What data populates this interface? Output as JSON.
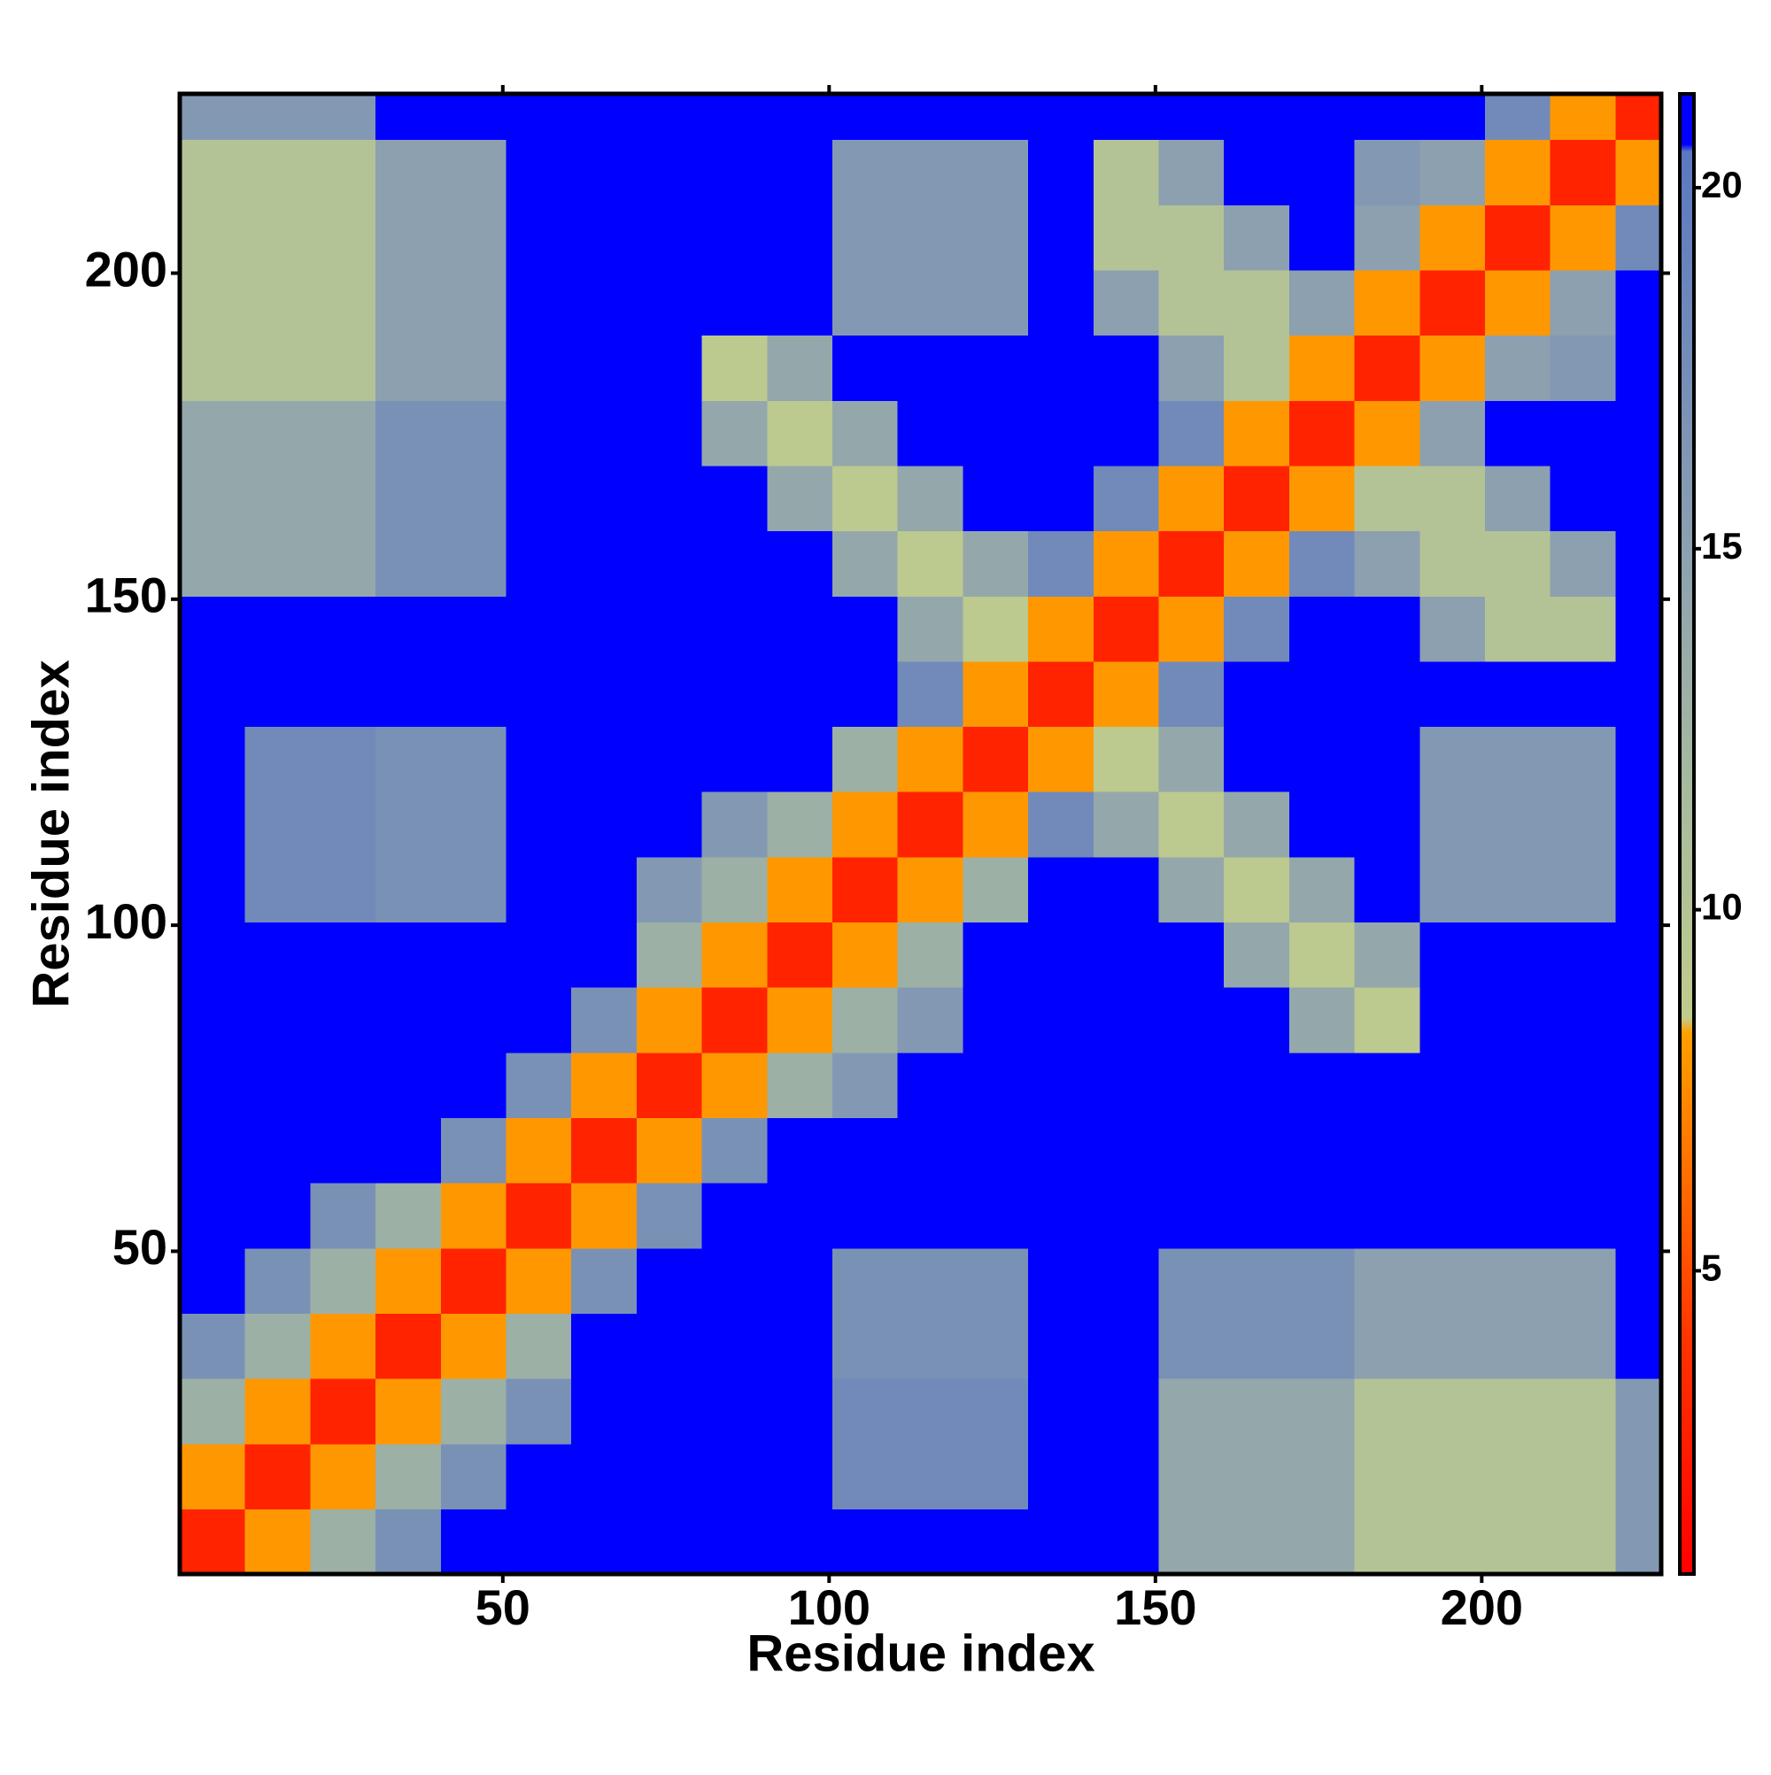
{
  "chart_data": {
    "type": "heatmap",
    "xlabel": "Residue index",
    "ylabel": "Residue index",
    "xbins": [
      0.5,
      10.5,
      20.5,
      30.5,
      40.5,
      50.5,
      60.5,
      70.5,
      80.5,
      90.5,
      100.5,
      110.5,
      120.5,
      130.5,
      140.5,
      150.5,
      160.5,
      170.5,
      180.5,
      190.5,
      200.5,
      210.5,
      220.5,
      227.5
    ],
    "ybins": [
      0.5,
      10.5,
      20.5,
      30.5,
      40.5,
      50.5,
      60.5,
      70.5,
      80.5,
      90.5,
      100.5,
      110.5,
      120.5,
      130.5,
      140.5,
      150.5,
      160.5,
      170.5,
      180.5,
      190.5,
      200.5,
      210.5,
      220.5,
      227.5
    ],
    "z": [
      [
        3,
        8,
        13,
        17,
        21,
        21,
        21,
        21,
        21,
        21,
        21,
        21,
        21,
        21,
        21,
        14,
        14,
        14,
        10,
        10,
        10,
        10,
        16
      ],
      [
        8,
        3,
        8,
        13,
        17,
        21,
        21,
        21,
        21,
        21,
        18,
        18,
        18,
        21,
        21,
        14,
        14,
        14,
        10,
        10,
        10,
        10,
        16
      ],
      [
        13,
        8,
        3,
        8,
        13,
        17,
        21,
        21,
        21,
        21,
        18,
        18,
        18,
        21,
        21,
        14,
        14,
        14,
        10,
        10,
        10,
        10,
        16
      ],
      [
        17,
        13,
        8,
        3,
        8,
        13,
        21,
        21,
        21,
        21,
        17,
        17,
        17,
        21,
        21,
        17,
        17,
        17,
        15,
        15,
        15,
        15,
        21
      ],
      [
        21,
        17,
        13,
        8,
        3,
        8,
        17,
        21,
        21,
        21,
        17,
        17,
        17,
        21,
        21,
        17,
        17,
        17,
        15,
        15,
        15,
        15,
        21
      ],
      [
        21,
        21,
        17,
        13,
        8,
        3,
        8,
        17,
        21,
        21,
        21,
        21,
        21,
        21,
        21,
        21,
        21,
        21,
        21,
        21,
        21,
        21,
        21
      ],
      [
        21,
        21,
        21,
        21,
        17,
        8,
        3,
        8,
        17,
        21,
        21,
        21,
        21,
        21,
        21,
        21,
        21,
        21,
        21,
        21,
        21,
        21,
        21
      ],
      [
        21,
        21,
        21,
        21,
        21,
        17,
        8,
        3,
        8,
        13,
        16,
        21,
        21,
        21,
        21,
        21,
        21,
        21,
        21,
        21,
        21,
        21,
        21
      ],
      [
        21,
        21,
        21,
        21,
        21,
        21,
        17,
        8,
        3,
        8,
        13,
        16,
        21,
        21,
        21,
        21,
        21,
        14,
        9,
        21,
        21,
        21,
        21
      ],
      [
        21,
        21,
        21,
        21,
        21,
        21,
        21,
        13,
        8,
        3,
        8,
        13,
        21,
        21,
        21,
        21,
        14,
        9,
        14,
        21,
        21,
        21,
        21
      ],
      [
        21,
        18,
        18,
        17,
        17,
        21,
        21,
        16,
        13,
        8,
        3,
        8,
        13,
        21,
        21,
        14,
        9,
        14,
        21,
        16,
        16,
        16,
        21
      ],
      [
        21,
        18,
        18,
        17,
        17,
        21,
        21,
        21,
        16,
        13,
        8,
        3,
        8,
        18,
        14,
        9,
        14,
        21,
        21,
        16,
        16,
        16,
        21
      ],
      [
        21,
        18,
        18,
        17,
        17,
        21,
        21,
        21,
        21,
        21,
        13,
        8,
        3,
        8,
        9,
        14,
        21,
        21,
        21,
        16,
        16,
        16,
        21
      ],
      [
        21,
        21,
        21,
        21,
        21,
        21,
        21,
        21,
        21,
        21,
        21,
        18,
        8,
        3,
        8,
        18,
        21,
        21,
        21,
        21,
        21,
        21,
        21
      ],
      [
        21,
        21,
        21,
        21,
        21,
        21,
        21,
        21,
        21,
        21,
        21,
        14,
        9,
        8,
        3,
        8,
        18,
        21,
        21,
        15,
        10,
        10,
        21
      ],
      [
        14,
        14,
        14,
        17,
        17,
        21,
        21,
        21,
        21,
        21,
        14,
        9,
        14,
        18,
        8,
        3,
        8,
        18,
        15,
        10,
        10,
        15,
        21
      ],
      [
        14,
        14,
        14,
        17,
        17,
        21,
        21,
        21,
        21,
        14,
        9,
        14,
        21,
        21,
        18,
        8,
        3,
        8,
        10,
        10,
        15,
        21,
        21
      ],
      [
        14,
        14,
        14,
        17,
        17,
        21,
        21,
        21,
        14,
        9,
        14,
        21,
        21,
        21,
        21,
        18,
        8,
        3,
        8,
        15,
        21,
        21,
        21
      ],
      [
        10,
        10,
        10,
        15,
        15,
        21,
        21,
        21,
        9,
        14,
        21,
        21,
        21,
        21,
        21,
        15,
        10,
        8,
        3,
        8,
        15,
        16,
        21
      ],
      [
        10,
        10,
        10,
        15,
        15,
        21,
        21,
        21,
        21,
        21,
        16,
        16,
        16,
        21,
        15,
        10,
        10,
        15,
        8,
        3,
        8,
        15,
        21
      ],
      [
        10,
        10,
        10,
        15,
        15,
        21,
        21,
        21,
        21,
        21,
        16,
        16,
        16,
        21,
        10,
        10,
        15,
        21,
        15,
        8,
        3,
        8,
        18
      ],
      [
        10,
        10,
        10,
        15,
        15,
        21,
        21,
        21,
        21,
        21,
        16,
        16,
        16,
        21,
        10,
        15,
        21,
        21,
        16,
        15,
        8,
        3,
        8
      ],
      [
        16,
        16,
        16,
        21,
        21,
        21,
        21,
        21,
        21,
        21,
        21,
        21,
        21,
        21,
        21,
        21,
        21,
        21,
        21,
        21,
        18,
        8,
        3
      ]
    ],
    "xlim": [
      0.5,
      227.5
    ],
    "ylim": [
      0.5,
      227.5
    ],
    "xticks": [
      50,
      100,
      150,
      200
    ],
    "yticks": [
      50,
      100,
      150,
      200
    ],
    "zlim": [
      0.8,
      21.3
    ],
    "zticks": [
      5,
      10,
      15,
      20
    ],
    "colorscale": [
      [
        0.8,
        "#ff0000"
      ],
      [
        4,
        "#ff3300"
      ],
      [
        8.3,
        "#ffa000"
      ],
      [
        8.5,
        "#c0cc8c"
      ],
      [
        12,
        "#a4b8a0"
      ],
      [
        15,
        "#8ca0b0"
      ],
      [
        20.5,
        "#5a78c0"
      ],
      [
        20.6,
        "#0000ff"
      ],
      [
        21.3,
        "#0000ff"
      ]
    ]
  }
}
